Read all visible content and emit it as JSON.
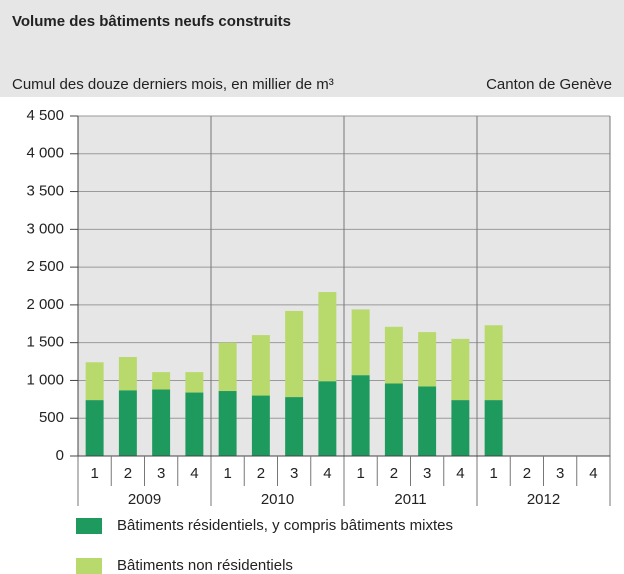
{
  "chart_data": {
    "type": "bar",
    "stacked": true,
    "title": "Volume des bâtiments neufs construits",
    "subtitle": "Cumul des douze derniers mois, en millier de m³",
    "region": "Canton de Genève",
    "categories": [
      "1",
      "2",
      "3",
      "4",
      "1",
      "2",
      "3",
      "4",
      "1",
      "2",
      "3",
      "4",
      "1",
      "2",
      "3",
      "4"
    ],
    "groups": [
      "2009",
      "2010",
      "2011",
      "2012"
    ],
    "series": [
      {
        "name": "Bâtiments résidentiels, y compris bâtiments mixtes",
        "color": "#1f9a5f",
        "values": [
          740,
          870,
          880,
          840,
          860,
          800,
          780,
          990,
          1070,
          960,
          920,
          740,
          740,
          null,
          null,
          null
        ]
      },
      {
        "name": "Bâtiments non résidentiels",
        "color": "#b8d96b",
        "values": [
          500,
          440,
          230,
          270,
          640,
          800,
          1140,
          1180,
          870,
          750,
          720,
          810,
          990,
          null,
          null,
          null
        ]
      }
    ],
    "ylim": [
      0,
      4500
    ],
    "yticks": [
      0,
      500,
      {
        "value": 1000,
        "label": "1 000"
      },
      {
        "value": 1500,
        "label": "1 500"
      },
      {
        "value": 2000,
        "label": "2 000"
      },
      {
        "value": 2500,
        "label": "2 500"
      },
      {
        "value": 3000,
        "label": "3 000"
      },
      {
        "value": 3500,
        "label": "3 500"
      },
      {
        "value": 4000,
        "label": "4 000"
      },
      {
        "value": 4500,
        "label": "4 500"
      }
    ],
    "grid": true
  }
}
